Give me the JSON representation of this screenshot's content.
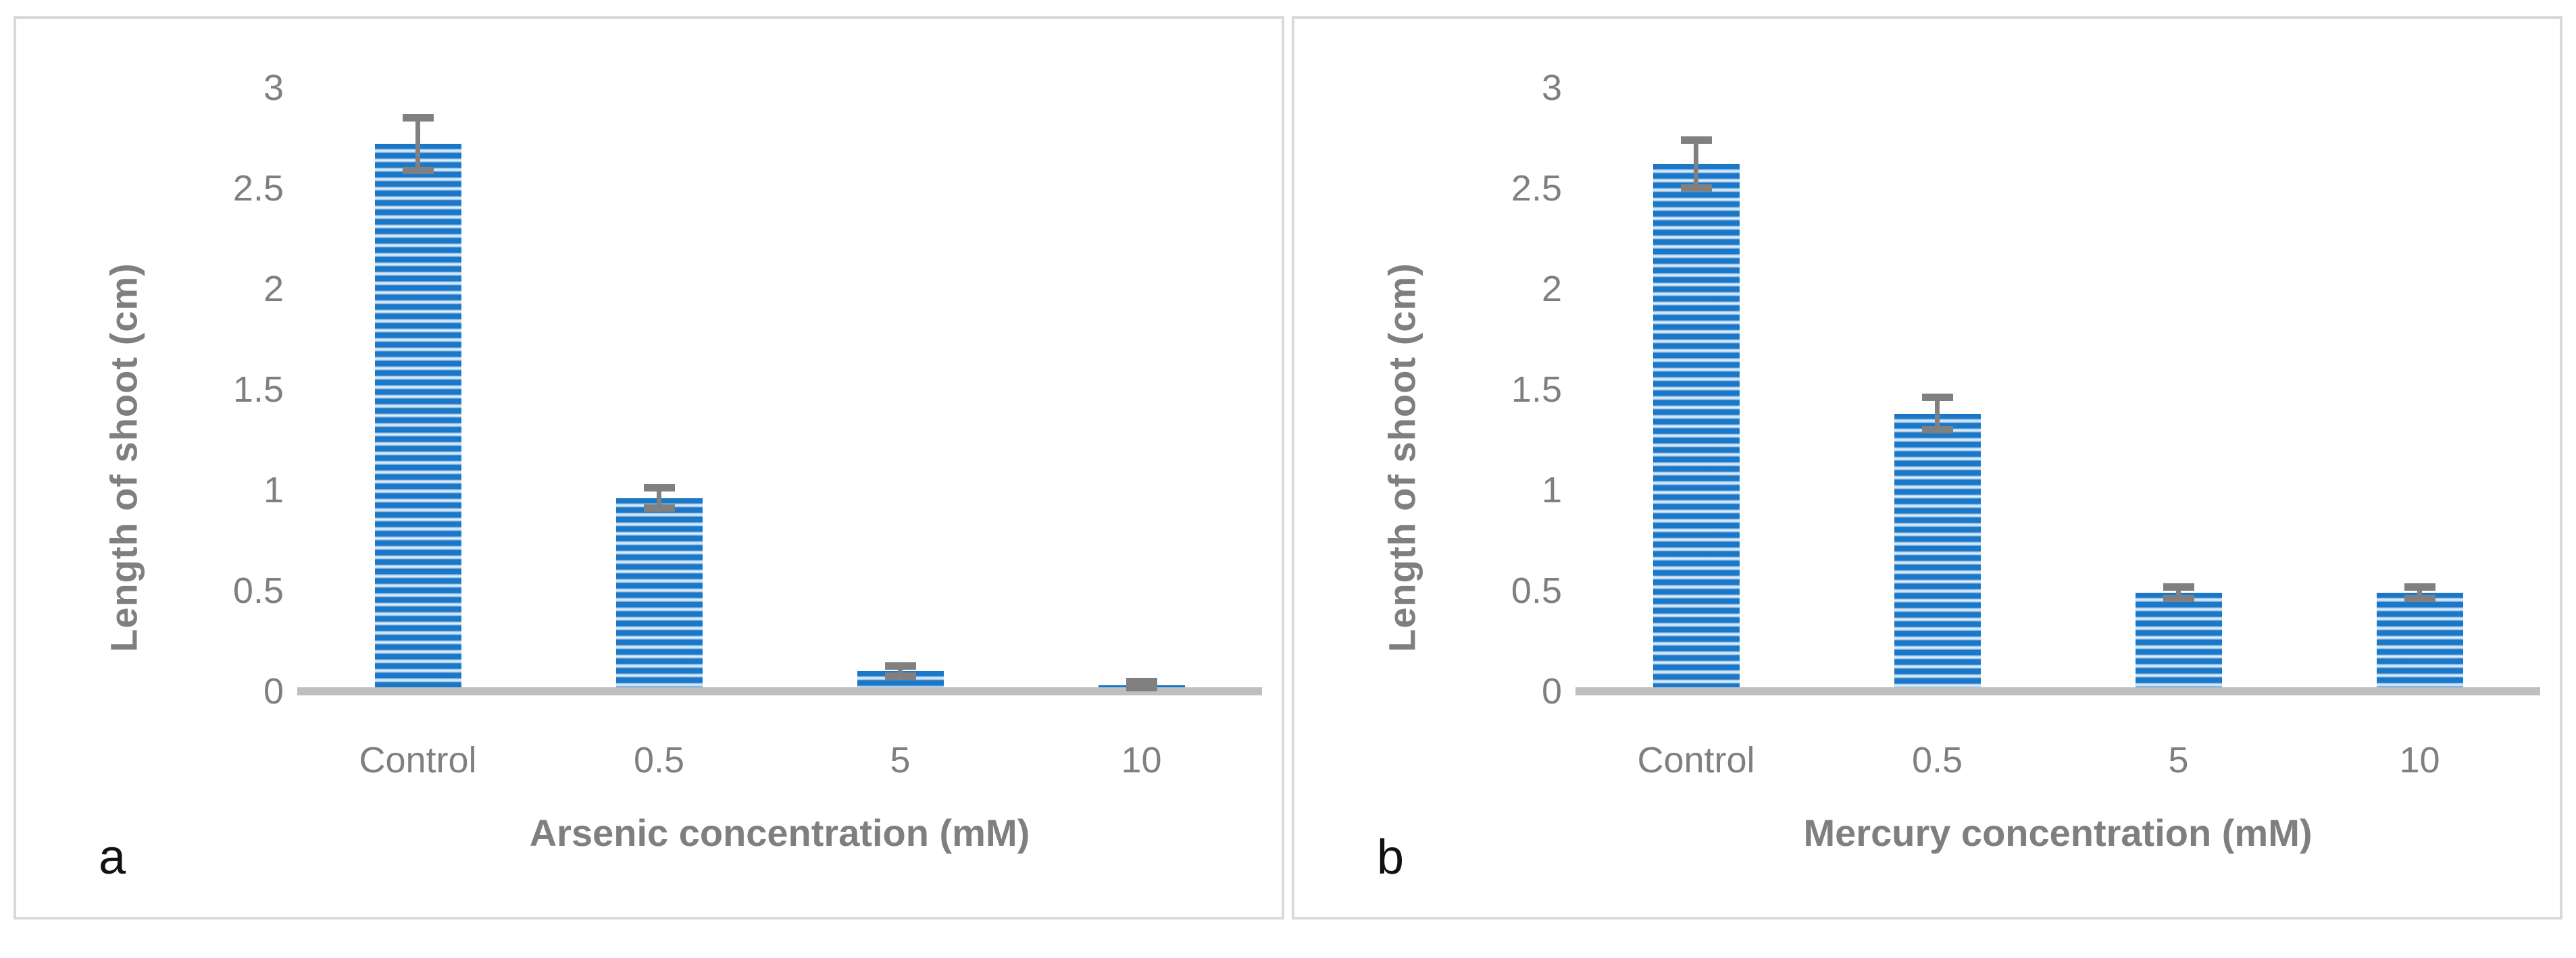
{
  "chart_data": [
    {
      "type": "bar",
      "panel_label": "a",
      "title": "",
      "xlabel": "Arsenic concentration (mM)",
      "ylabel": "Length of shoot (cm)",
      "categories": [
        "Control",
        "0.5",
        "5",
        "10"
      ],
      "values": [
        2.7,
        0.94,
        0.08,
        0.01
      ],
      "error_bars": [
        0.13,
        0.05,
        0.025,
        0.02
      ],
      "y_ticks": [
        3,
        2.5,
        2,
        1.5,
        1,
        0.5,
        0
      ],
      "ylim": [
        0,
        3
      ],
      "grid": false,
      "legend": false,
      "bar_pattern": "horizontal-stripes"
    },
    {
      "type": "bar",
      "panel_label": "b",
      "title": "",
      "xlabel": "Mercury concentration (mM)",
      "ylabel": "Length of shoot (cm)",
      "categories": [
        "Control",
        "0.5",
        "5",
        "10"
      ],
      "values": [
        2.6,
        1.36,
        0.47,
        0.47
      ],
      "error_bars": [
        0.12,
        0.08,
        0.03,
        0.03
      ],
      "y_ticks": [
        3,
        2.5,
        2,
        1.5,
        1,
        0.5,
        0
      ],
      "ylim": [
        0,
        3
      ],
      "grid": false,
      "legend": false,
      "bar_pattern": "horizontal-stripes"
    }
  ],
  "style": {
    "bar_color": "#1B78C8",
    "bar_stripe_mid": "#A9CDEB",
    "bar_stripe_light": "#E9F2FB",
    "error_bar_color": "#808080",
    "axis_line_color": "#BFBFBF",
    "text_color": "#7F7F7F",
    "panel_border_color": "#D9D9D9",
    "panel_letter_color": "#111111"
  }
}
